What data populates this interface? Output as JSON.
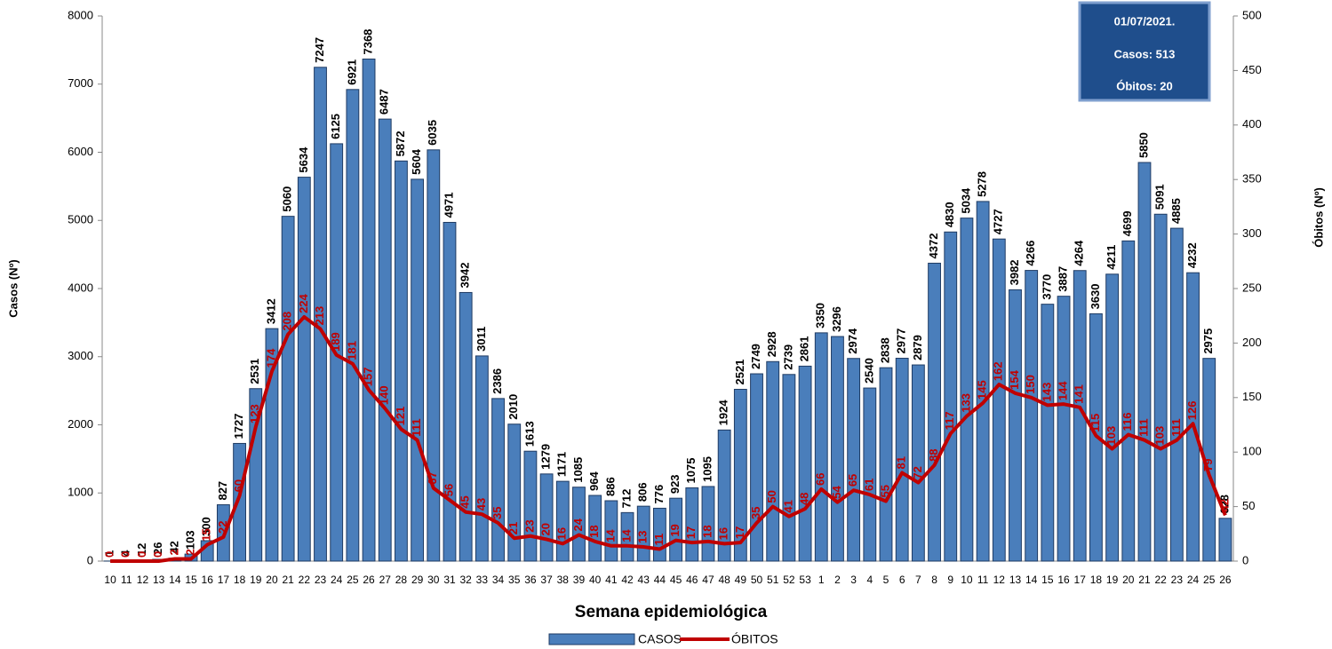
{
  "chart_data": {
    "type": "combo",
    "categories": [
      "10",
      "11",
      "12",
      "13",
      "14",
      "15",
      "16",
      "17",
      "18",
      "19",
      "20",
      "21",
      "22",
      "23",
      "24",
      "25",
      "26",
      "27",
      "28",
      "29",
      "30",
      "31",
      "32",
      "33",
      "34",
      "35",
      "36",
      "37",
      "38",
      "39",
      "40",
      "41",
      "42",
      "43",
      "44",
      "45",
      "46",
      "47",
      "48",
      "49",
      "50",
      "51",
      "52",
      "53",
      "1",
      "2",
      "3",
      "4",
      "5",
      "6",
      "7",
      "8",
      "9",
      "10",
      "11",
      "12",
      "13",
      "14",
      "15",
      "16",
      "17",
      "18",
      "19",
      "20",
      "21",
      "22",
      "23",
      "24",
      "25",
      "26"
    ],
    "series": [
      {
        "name": "CASOS",
        "type": "bar",
        "axis": "y",
        "color": "#4a7ebb",
        "values": [
          1,
          4,
          12,
          26,
          42,
          103,
          300,
          827,
          1727,
          2531,
          3412,
          5060,
          5634,
          7247,
          6125,
          6921,
          7368,
          6487,
          5872,
          5604,
          6035,
          4971,
          3942,
          3011,
          2386,
          2010,
          1613,
          1279,
          1171,
          1085,
          964,
          886,
          712,
          806,
          776,
          923,
          1075,
          1095,
          1924,
          2521,
          2749,
          2928,
          2739,
          2861,
          3350,
          3296,
          2974,
          2540,
          2838,
          2977,
          2879,
          4372,
          4830,
          5034,
          5278,
          4727,
          3982,
          4266,
          3770,
          3887,
          4264,
          3630,
          4211,
          4699,
          5850,
          5091,
          4885,
          4232,
          2975,
          628
        ]
      },
      {
        "name": "ÓBITOS",
        "type": "line",
        "axis": "y2",
        "color": "#c00000",
        "values": [
          0,
          0,
          0,
          0,
          2,
          2,
          15,
          22,
          60,
          123,
          174,
          208,
          224,
          213,
          189,
          181,
          157,
          140,
          121,
          111,
          67,
          56,
          45,
          43,
          35,
          21,
          23,
          20,
          16,
          24,
          18,
          14,
          14,
          13,
          11,
          19,
          17,
          18,
          16,
          17,
          35,
          50,
          41,
          48,
          66,
          54,
          65,
          61,
          55,
          81,
          72,
          88,
          117,
          133,
          145,
          162,
          154,
          150,
          143,
          144,
          141,
          115,
          103,
          116,
          111,
          103,
          111,
          126,
          79,
          42
        ]
      }
    ],
    "x_label": "Semana epidemiológica",
    "y_label": "Casos (Nº)",
    "y2_label": "Óbitos (Nº)",
    "ylim": [
      0,
      8000
    ],
    "yticks": [
      0,
      1000,
      2000,
      3000,
      4000,
      5000,
      6000,
      7000,
      8000
    ],
    "y2lim": [
      0,
      500
    ],
    "y2ticks": [
      0,
      50,
      100,
      150,
      200,
      250,
      300,
      350,
      400,
      450,
      500
    ],
    "annotations": [
      "01/07/2021.",
      "Casos: 513",
      "Óbitos: 20"
    ]
  }
}
